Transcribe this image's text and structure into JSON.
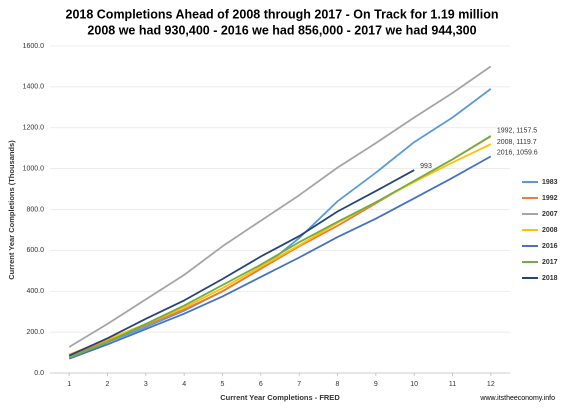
{
  "chart_data": {
    "type": "line",
    "title": "2018 Completions  Ahead of 2008 through 2017 - On Track for 1.19 million",
    "subtitle": "2008 we had 930,400 - 2016 we had 856,000 - 2017 we had 944,300",
    "x_label": "Current Year Completions - FRED",
    "y_label": "Current Year Completions (Thousands)",
    "source": "www.itstheeconomy.info",
    "x": [
      1,
      2,
      3,
      4,
      5,
      6,
      7,
      8,
      9,
      10,
      11,
      12
    ],
    "xlim": [
      0.5,
      12.5
    ],
    "xticks": [
      1,
      2,
      3,
      4,
      5,
      6,
      7,
      8,
      9,
      10,
      11,
      12
    ],
    "ylim": [
      0,
      1600
    ],
    "yticks": [
      {
        "value": 0,
        "label": "0.0"
      },
      {
        "value": 200,
        "label": "200.0"
      },
      {
        "value": 400,
        "label": "400.0"
      },
      {
        "value": 600,
        "label": "600.0"
      },
      {
        "value": 800,
        "label": "800.0"
      },
      {
        "value": 1000,
        "label": "1000.0"
      },
      {
        "value": 1200,
        "label": "1200.0"
      },
      {
        "value": 1400,
        "label": "1400.0"
      },
      {
        "value": 1600,
        "label": "1600.0"
      }
    ],
    "grid": true,
    "legend": "right",
    "series": [
      {
        "name": "1983",
        "color": "#5b9bd5",
        "values": [
          80,
          150,
          225,
          305,
          400,
          510,
          660,
          840,
          980,
          1130,
          1250,
          1390
        ]
      },
      {
        "name": "1992",
        "color": "#ed7d31",
        "values": [
          85,
          160,
          235,
          310,
          400,
          510,
          620,
          720,
          830,
          940,
          1045,
          1157.5
        ],
        "value_labels": [
          null,
          null,
          null,
          null,
          null,
          null,
          null,
          null,
          null,
          null,
          null,
          "1992, 1157.5"
        ]
      },
      {
        "name": "2007",
        "color": "#a5a5a5",
        "values": [
          127,
          240,
          360,
          480,
          620,
          745,
          870,
          1005,
          1125,
          1250,
          1370,
          1500
        ]
      },
      {
        "name": "2008",
        "color": "#ffc000",
        "values": [
          90,
          165,
          240,
          320,
          415,
          520,
          625,
          735,
          835,
          935,
          1030,
          1119.7
        ],
        "value_labels": [
          null,
          null,
          null,
          null,
          null,
          null,
          null,
          null,
          null,
          null,
          null,
          "2008, 1119.7"
        ]
      },
      {
        "name": "2016",
        "color": "#4472c4",
        "values": [
          70,
          140,
          215,
          290,
          375,
          470,
          565,
          665,
          755,
          855,
          955,
          1059.6
        ],
        "value_labels": [
          null,
          null,
          null,
          null,
          null,
          null,
          null,
          null,
          null,
          null,
          null,
          "2016, 1059.6"
        ]
      },
      {
        "name": "2017",
        "color": "#70ad47",
        "values": [
          75,
          150,
          240,
          330,
          430,
          530,
          640,
          740,
          835,
          940,
          1045,
          1160
        ]
      },
      {
        "name": "2018",
        "color": "#264478",
        "values": [
          85,
          170,
          265,
          355,
          460,
          570,
          670,
          790,
          890,
          993,
          null,
          null
        ],
        "value_labels": [
          null,
          null,
          null,
          null,
          null,
          null,
          null,
          null,
          null,
          "993",
          null,
          null
        ]
      }
    ]
  }
}
